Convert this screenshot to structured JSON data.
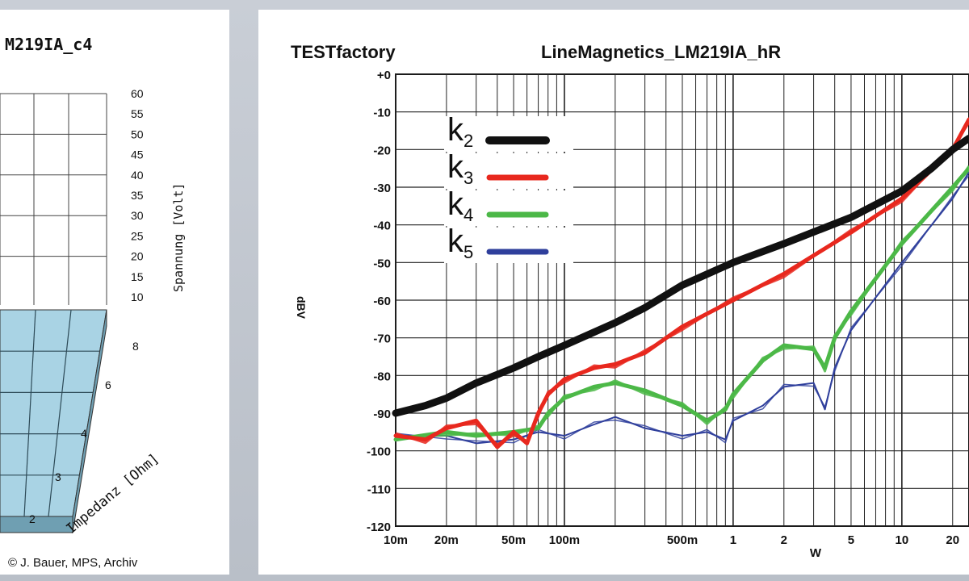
{
  "credit": "© J. Bauer, MPS, Archiv",
  "chart_data": [
    {
      "type": "bar",
      "title": "M219IA_c4",
      "zlabel": "Spannung [Volt]",
      "xlabel": "Impedanz [Ohm]",
      "zticks": [
        "60",
        "55",
        "50",
        "45",
        "40",
        "35",
        "30",
        "25",
        "20",
        "15",
        "10"
      ],
      "xticks": [
        "8",
        "6",
        "4",
        "3",
        "2"
      ],
      "note": "3D surface of output voltage vs impedance (partially cropped)",
      "colors": {
        "surface": "#a9d3e4",
        "side": "#6f9fb2"
      }
    },
    {
      "type": "line",
      "brand": "TESTfactory",
      "title": "LineMagnetics_LM219IA_hR",
      "ylabel": "dBV",
      "xlabel": "W",
      "x_scale": "log",
      "xlim": [
        0.01,
        25
      ],
      "ylim": [
        -120,
        0
      ],
      "yticks": [
        "+0",
        "-10",
        "-20",
        "-30",
        "-40",
        "-50",
        "-60",
        "-70",
        "-80",
        "-90",
        "-100",
        "-110",
        "-120"
      ],
      "xticks": [
        {
          "value": 0.01,
          "label": "10m"
        },
        {
          "value": 0.02,
          "label": "20m"
        },
        {
          "value": 0.05,
          "label": "50m"
        },
        {
          "value": 0.1,
          "label": "100m"
        },
        {
          "value": 0.5,
          "label": "500m"
        },
        {
          "value": 1,
          "label": "1"
        },
        {
          "value": 2,
          "label": "2"
        },
        {
          "value": 5,
          "label": "5"
        },
        {
          "value": 10,
          "label": "10"
        },
        {
          "value": 20,
          "label": "20"
        }
      ],
      "grid": true,
      "legend_position": "top-left",
      "series": [
        {
          "name": "k2",
          "label_main": "k",
          "label_sub": "2",
          "color": "#111111",
          "x": [
            0.01,
            0.015,
            0.02,
            0.03,
            0.05,
            0.07,
            0.1,
            0.2,
            0.3,
            0.5,
            1,
            2,
            5,
            10,
            15,
            20,
            25
          ],
          "y": [
            -90,
            -88,
            -86,
            -82,
            -78,
            -75,
            -72,
            -66,
            -62,
            -56,
            -50,
            -45,
            -38,
            -31,
            -25,
            -20,
            -17
          ]
        },
        {
          "name": "k3",
          "label_main": "k",
          "label_sub": "3",
          "color": "#e8281e",
          "x": [
            0.01,
            0.015,
            0.02,
            0.03,
            0.04,
            0.05,
            0.06,
            0.07,
            0.08,
            0.1,
            0.15,
            0.2,
            0.3,
            0.5,
            1,
            2,
            5,
            10,
            20,
            25
          ],
          "y": [
            -96,
            -97,
            -94,
            -92,
            -99,
            -95,
            -98,
            -90,
            -85,
            -81,
            -78,
            -77,
            -74,
            -67,
            -60,
            -53,
            -42,
            -33,
            -20,
            -12
          ]
        },
        {
          "name": "k4",
          "label_main": "k",
          "label_sub": "4",
          "color": "#4cb848",
          "x": [
            0.01,
            0.02,
            0.03,
            0.05,
            0.07,
            0.08,
            0.1,
            0.15,
            0.2,
            0.3,
            0.5,
            0.7,
            0.9,
            1,
            1.5,
            2,
            3,
            3.5,
            4,
            5,
            10,
            20,
            25
          ],
          "y": [
            -97,
            -95,
            -96,
            -95,
            -94,
            -90,
            -86,
            -83,
            -82,
            -84,
            -88,
            -92,
            -89,
            -85,
            -76,
            -72,
            -73,
            -78,
            -70,
            -63,
            -45,
            -30,
            -25
          ]
        },
        {
          "name": "k5",
          "label_main": "k",
          "label_sub": "5",
          "color": "#2f3f9c",
          "x": [
            0.01,
            0.02,
            0.03,
            0.05,
            0.07,
            0.1,
            0.15,
            0.2,
            0.3,
            0.5,
            0.7,
            0.9,
            1,
            1.5,
            2,
            3,
            3.5,
            4,
            5,
            10,
            20,
            25
          ],
          "y": [
            -96,
            -96,
            -98,
            -97,
            -95,
            -96,
            -93,
            -91,
            -94,
            -96,
            -95,
            -97,
            -92,
            -88,
            -83,
            -82,
            -89,
            -78,
            -68,
            -50,
            -33,
            -26
          ]
        }
      ]
    }
  ]
}
